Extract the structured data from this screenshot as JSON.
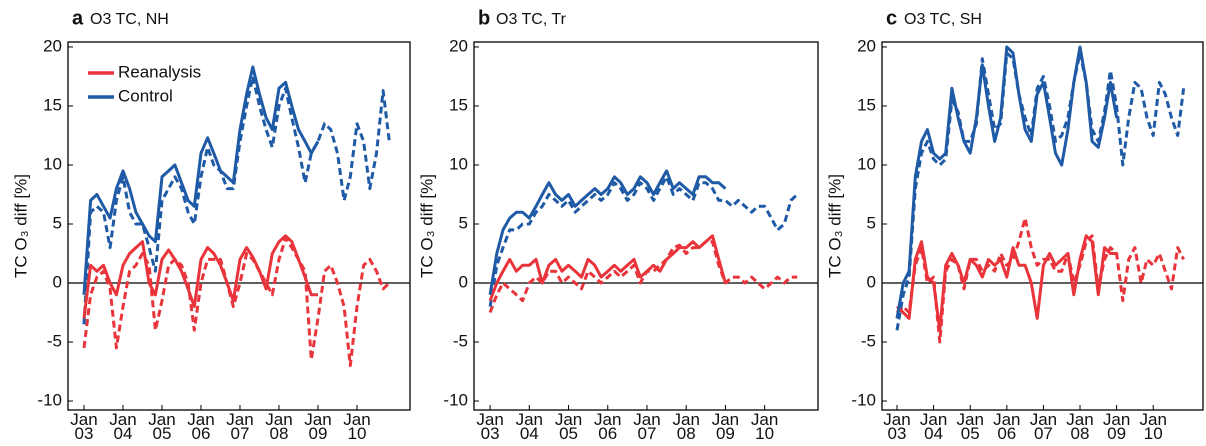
{
  "chart_data": [
    {
      "type": "line",
      "panel": "a",
      "title": "O3 TC, NH",
      "ylabel": "TC O₃ diff [%]",
      "x": [
        2003.0,
        2003.17,
        2003.33,
        2003.5,
        2003.67,
        2003.83,
        2004.0,
        2004.17,
        2004.33,
        2004.5,
        2004.67,
        2004.83,
        2005.0,
        2005.17,
        2005.33,
        2005.5,
        2005.67,
        2005.83,
        2006.0,
        2006.17,
        2006.33,
        2006.5,
        2006.67,
        2006.83,
        2007.0,
        2007.17,
        2007.33,
        2007.5,
        2007.67,
        2007.83,
        2008.0,
        2008.17,
        2008.33,
        2008.5,
        2008.67,
        2008.83,
        2009.0,
        2009.17,
        2009.33,
        2009.5,
        2009.67,
        2009.83,
        2010.0,
        2010.17,
        2010.33,
        2010.5,
        2010.67,
        2010.83
      ],
      "series": [
        {
          "name": "Reanalysis",
          "color": "#e8343a",
          "dash": false,
          "values": [
            -3,
            1.5,
            1,
            1.5,
            0,
            -1,
            1.5,
            2.5,
            3,
            3.5,
            0,
            -1,
            2,
            2.8,
            2,
            1,
            -0.5,
            -2,
            2,
            3,
            2.5,
            1.5,
            0,
            -1.5,
            2,
            3,
            2.2,
            1,
            -0.5,
            2.5,
            3.5,
            4,
            3.5,
            2,
            0.5,
            -1,
            -1,
            null,
            null,
            null,
            null,
            null,
            null,
            null,
            null,
            null,
            null,
            null
          ]
        },
        {
          "name": "Control",
          "color": "#1f5aa6",
          "dash": false,
          "values": [
            -1,
            7,
            7.5,
            6.5,
            5.5,
            8,
            9.5,
            8,
            6,
            5,
            4,
            3.5,
            9,
            9.5,
            10,
            8.5,
            7,
            6.5,
            11,
            12.3,
            11,
            9.5,
            9,
            8.5,
            13,
            16,
            18.3,
            16,
            14,
            13,
            16.5,
            17,
            15,
            13,
            12,
            11,
            12,
            null,
            null,
            null,
            null,
            null,
            null,
            null,
            null,
            null,
            null,
            null
          ]
        },
        {
          "color": "#e8343a",
          "dash": true,
          "values": [
            -5.5,
            -1,
            0.5,
            1,
            -0.5,
            -5.5,
            -2,
            1,
            1.5,
            2.5,
            1.5,
            -4,
            -1.5,
            1.5,
            2,
            1.5,
            0,
            -4,
            0,
            2,
            2,
            2,
            0,
            -2,
            0,
            2.5,
            2,
            1,
            0,
            -1,
            2,
            3.8,
            3,
            2,
            1,
            -6.5,
            -3,
            1,
            1.5,
            0,
            -2,
            -7,
            -2,
            1.5,
            2,
            1,
            -0.5,
            0
          ]
        },
        {
          "color": "#1f5aa6",
          "dash": true,
          "values": [
            -3.5,
            6,
            6.5,
            6,
            3,
            7,
            9,
            6,
            5,
            5,
            3,
            1,
            7,
            8,
            9,
            8,
            6,
            5,
            9,
            11.5,
            10,
            9.5,
            8,
            8,
            12,
            15,
            17.5,
            15,
            13,
            11.5,
            15,
            16.5,
            14,
            11.5,
            8.5,
            11,
            12,
            13.5,
            13,
            11,
            7,
            9,
            13.5,
            12,
            8,
            11,
            16.3,
            12
          ]
        }
      ],
      "legend": "upper left",
      "refline": 0,
      "xlim": [
        2002.59,
        2011.36
      ],
      "ylim": [
        -10.76,
        20.42
      ],
      "xticks": [
        {
          "value": 2003,
          "label": "Jan 03"
        },
        {
          "value": 2004,
          "label": "Jan 04"
        },
        {
          "value": 2005,
          "label": "Jan 05"
        },
        {
          "value": 2006,
          "label": "Jan 06"
        },
        {
          "value": 2007,
          "label": "Jan 07"
        },
        {
          "value": 2008,
          "label": "Jan 08"
        },
        {
          "value": 2009,
          "label": "Jan 09"
        },
        {
          "value": 2010,
          "label": "Jan 10"
        }
      ],
      "yticks": [
        -10,
        -5,
        0,
        5,
        10,
        15,
        20
      ]
    },
    {
      "type": "line",
      "panel": "b",
      "title": "O3 TC, Tr",
      "ylabel": "TC O₃ diff [%]",
      "x": [
        2003.0,
        2003.17,
        2003.33,
        2003.5,
        2003.67,
        2003.83,
        2004.0,
        2004.17,
        2004.33,
        2004.5,
        2004.67,
        2004.83,
        2005.0,
        2005.17,
        2005.33,
        2005.5,
        2005.67,
        2005.83,
        2006.0,
        2006.17,
        2006.33,
        2006.5,
        2006.67,
        2006.83,
        2007.0,
        2007.17,
        2007.33,
        2007.5,
        2007.67,
        2007.83,
        2008.0,
        2008.17,
        2008.33,
        2008.5,
        2008.67,
        2008.83,
        2009.0,
        2009.17,
        2009.33,
        2009.5,
        2009.67,
        2009.83,
        2010.0,
        2010.17,
        2010.33,
        2010.5,
        2010.67,
        2010.83
      ],
      "series": [
        {
          "color": "#e8343a",
          "dash": false,
          "values": [
            -1.5,
            0,
            1,
            2,
            1,
            1.5,
            1.5,
            2,
            0,
            1.5,
            2,
            1,
            1.5,
            1,
            0.5,
            2,
            1.5,
            0.5,
            1,
            1.5,
            1,
            1.5,
            2,
            0.5,
            1,
            1.5,
            1,
            2,
            2.5,
            3,
            3,
            3.5,
            3,
            3.5,
            4,
            2,
            0,
            null,
            null,
            null,
            null,
            null,
            null,
            null,
            null,
            null,
            null,
            null
          ]
        },
        {
          "color": "#1f5aa6",
          "dash": false,
          "values": [
            -1,
            2.5,
            4.5,
            5.5,
            6,
            6,
            5.5,
            6.5,
            7.5,
            8.5,
            7.5,
            7,
            7.5,
            6.5,
            7,
            7.5,
            8,
            7.5,
            8,
            9,
            8.5,
            7.5,
            8,
            9,
            8.5,
            7.5,
            8.5,
            9.5,
            8,
            8.5,
            8,
            7.5,
            9,
            9,
            8.5,
            8.5,
            8,
            null,
            null,
            null,
            null,
            null,
            null,
            null,
            null,
            null,
            null,
            null
          ]
        },
        {
          "color": "#e8343a",
          "dash": true,
          "values": [
            -2.5,
            -1,
            0,
            -0.5,
            -1,
            -1.5,
            0,
            0.5,
            0,
            1,
            1,
            0,
            0.5,
            0,
            -0.5,
            1,
            0.5,
            0,
            0.5,
            1,
            0.5,
            1,
            1.5,
            0,
            1,
            1,
            1.5,
            2,
            3,
            3.2,
            2.5,
            3,
            3,
            3.5,
            3.5,
            1.5,
            0,
            0.5,
            0.5,
            0,
            0.5,
            0,
            -0.5,
            0,
            0.5,
            0,
            0.5,
            0.5
          ]
        },
        {
          "color": "#1f5aa6",
          "dash": true,
          "values": [
            -2,
            1.5,
            3,
            4.5,
            4.5,
            5,
            5,
            6,
            6.5,
            7.5,
            7,
            6.5,
            7,
            6,
            6.5,
            7,
            7.5,
            7,
            7.5,
            8.5,
            8,
            7,
            7.5,
            8.5,
            8,
            7,
            8,
            9,
            7.5,
            8,
            7.5,
            7,
            8.5,
            8.5,
            8,
            7,
            7,
            6.5,
            7,
            6.5,
            6,
            6.5,
            6.5,
            5.5,
            4.5,
            5,
            7,
            7.5
          ]
        }
      ],
      "refline": 0,
      "xlim": [
        2002.59,
        2011.36
      ],
      "ylim": [
        -10.76,
        20.42
      ],
      "xticks": [
        {
          "value": 2003,
          "label": "Jan 03"
        },
        {
          "value": 2004,
          "label": "Jan 04"
        },
        {
          "value": 2005,
          "label": "Jan 05"
        },
        {
          "value": 2006,
          "label": "Jan 06"
        },
        {
          "value": 2007,
          "label": "Jan 07"
        },
        {
          "value": 2008,
          "label": "Jan 08"
        },
        {
          "value": 2009,
          "label": "Jan 09"
        },
        {
          "value": 2010,
          "label": "Jan 10"
        }
      ],
      "yticks": [
        -10,
        -5,
        0,
        5,
        10,
        15,
        20
      ]
    },
    {
      "type": "line",
      "panel": "c",
      "title": "O3 TC, SH",
      "ylabel": "TC O₃ diff [%]",
      "x": [
        2003.0,
        2003.17,
        2003.33,
        2003.5,
        2003.67,
        2003.83,
        2004.0,
        2004.17,
        2004.33,
        2004.5,
        2004.67,
        2004.83,
        2005.0,
        2005.17,
        2005.33,
        2005.5,
        2005.67,
        2005.83,
        2006.0,
        2006.17,
        2006.33,
        2006.5,
        2006.67,
        2006.83,
        2007.0,
        2007.17,
        2007.33,
        2007.5,
        2007.67,
        2007.83,
        2008.0,
        2008.17,
        2008.33,
        2008.5,
        2008.67,
        2008.83,
        2009.0,
        2009.17,
        2009.33,
        2009.5,
        2009.67,
        2009.83,
        2010.0,
        2010.17,
        2010.33,
        2010.5,
        2010.67,
        2010.83
      ],
      "series": [
        {
          "color": "#e8343a",
          "dash": false,
          "values": [
            -2,
            -2.5,
            -3,
            2,
            3.5,
            0.5,
            0,
            -4,
            1.5,
            2.5,
            1.5,
            0,
            2,
            1.5,
            0.5,
            2,
            1.5,
            2,
            0.5,
            3,
            1.5,
            1.5,
            0,
            -3,
            1.5,
            2.5,
            1.5,
            2,
            2.5,
            -1,
            2,
            4,
            3.5,
            -1,
            3,
            2.5,
            2.5,
            null,
            null,
            null,
            null,
            null,
            null,
            null,
            null,
            null,
            null,
            null
          ]
        },
        {
          "color": "#1f5aa6",
          "dash": false,
          "values": [
            -3,
            0,
            1,
            9,
            12,
            13,
            11,
            10.5,
            11,
            16.5,
            14,
            12,
            11,
            14,
            18.5,
            15,
            12,
            14,
            20,
            19.5,
            16,
            13,
            12,
            16,
            17,
            14,
            11,
            10,
            13,
            17,
            20,
            17,
            12,
            11.5,
            14,
            17,
            14,
            null,
            null,
            null,
            null,
            null,
            null,
            null,
            null,
            null,
            null,
            null
          ]
        },
        {
          "color": "#e8343a",
          "dash": true,
          "values": [
            -2.5,
            -2,
            -2.5,
            1.5,
            3,
            0,
            0.5,
            -5,
            1,
            2,
            1.5,
            -0.5,
            2,
            2,
            1,
            1.5,
            1,
            2.5,
            1.5,
            2,
            3.5,
            5.5,
            3,
            1.5,
            2,
            2,
            1,
            1,
            2.5,
            0,
            1.5,
            3.5,
            4,
            -0.5,
            2,
            3,
            2.5,
            -1.5,
            2,
            3,
            0,
            2,
            1.5,
            2.5,
            1,
            -0.5,
            3,
            2
          ]
        },
        {
          "color": "#1f5aa6",
          "dash": true,
          "values": [
            -4,
            -1,
            0.5,
            8,
            11,
            12,
            10.5,
            10,
            10.5,
            15.5,
            14.5,
            12,
            12,
            13.5,
            19,
            16,
            13,
            13.5,
            19.5,
            19,
            16,
            14,
            12.5,
            16.5,
            17.5,
            15,
            12,
            12.5,
            14,
            17,
            19.5,
            17,
            13,
            12,
            14.5,
            18,
            15,
            10,
            14,
            17,
            16.5,
            14,
            12.5,
            17,
            16,
            14,
            12.5,
            16.5
          ]
        }
      ],
      "refline": 0,
      "xlim": [
        2002.59,
        2011.36
      ],
      "ylim": [
        -10.76,
        20.42
      ],
      "xticks": [
        {
          "value": 2003,
          "label": "Jan 03"
        },
        {
          "value": 2004,
          "label": "Jan 04"
        },
        {
          "value": 2005,
          "label": "Jan 05"
        },
        {
          "value": 2006,
          "label": "Jan 06"
        },
        {
          "value": 2007,
          "label": "Jan 07"
        },
        {
          "value": 2008,
          "label": "Jan 08"
        },
        {
          "value": 2009,
          "label": "Jan 09"
        },
        {
          "value": 2010,
          "label": "Jan 10"
        }
      ],
      "yticks": [
        -10,
        -5,
        0,
        5,
        10,
        15,
        20
      ]
    }
  ]
}
